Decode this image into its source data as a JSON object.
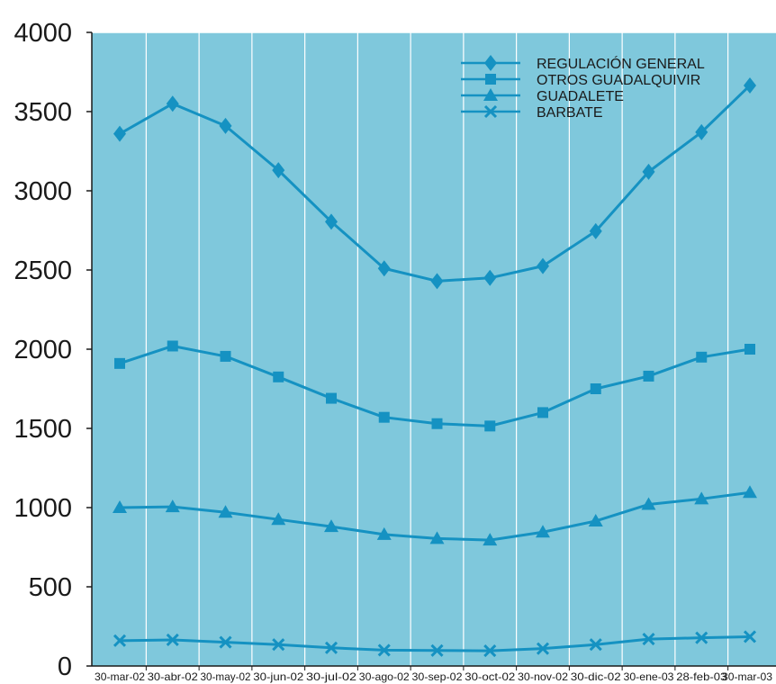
{
  "colors": {
    "plot_background": "#7fc8dc",
    "series": "#1592c2",
    "grid": "#ffffff",
    "axis": "#1a1a1a"
  },
  "chart_data": {
    "type": "line",
    "title": "",
    "xlabel": "",
    "ylabel": "",
    "categories": [
      "30-mar-02",
      "30-abr-02",
      "30-may-02",
      "30-jun-02",
      "30-jul-02",
      "30-ago-02",
      "30-sep-02",
      "30-oct-02",
      "30-nov-02",
      "30-dic-02",
      "30-ene-03",
      "28-feb-03",
      "30-mar-03"
    ],
    "ylim": [
      0,
      4000
    ],
    "yticks": [
      0,
      500,
      1000,
      1500,
      2000,
      2500,
      3000,
      3500,
      4000
    ],
    "grid": "vertical lines at categories, horizontal line at 4000",
    "legend_position": "top-right",
    "series": [
      {
        "name": "REGULACIÓN GENERAL",
        "marker": "diamond",
        "values": [
          3360,
          3550,
          3410,
          3130,
          2805,
          2510,
          2430,
          2450,
          2525,
          2745,
          3120,
          3370,
          3665
        ]
      },
      {
        "name": "OTROS GUADALQUIVIR",
        "marker": "square",
        "values": [
          1910,
          2020,
          1955,
          1825,
          1690,
          1570,
          1530,
          1515,
          1600,
          1750,
          1830,
          1950,
          2000
        ]
      },
      {
        "name": "GUADALETE",
        "marker": "triangle",
        "values": [
          1000,
          1005,
          970,
          925,
          880,
          830,
          805,
          795,
          845,
          915,
          1020,
          1055,
          1095
        ]
      },
      {
        "name": "BARBATE",
        "marker": "x",
        "values": [
          160,
          165,
          150,
          135,
          115,
          100,
          98,
          96,
          110,
          135,
          170,
          178,
          185
        ]
      }
    ]
  }
}
